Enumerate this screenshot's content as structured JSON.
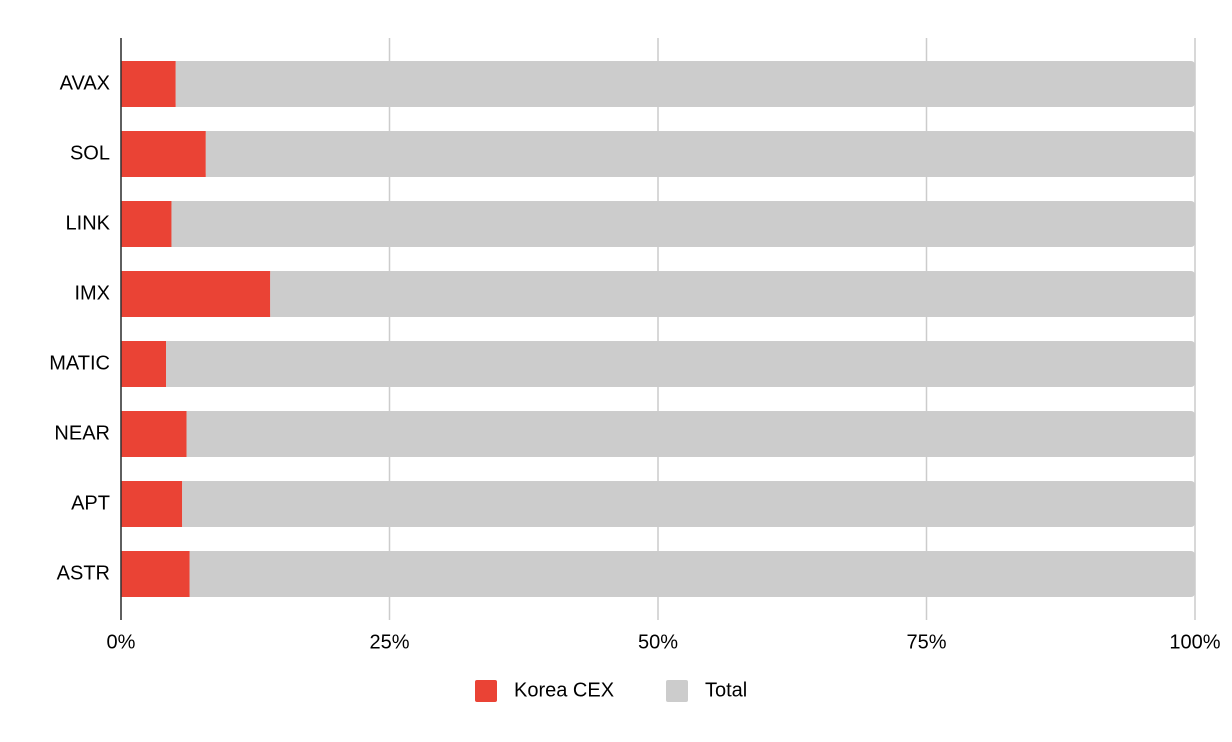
{
  "chart_data": {
    "type": "stacked-bar-horizontal",
    "categories": [
      "AVAX",
      "SOL",
      "LINK",
      "IMX",
      "MATIC",
      "NEAR",
      "APT",
      "ASTR"
    ],
    "series": [
      {
        "name": "Korea CEX",
        "color": "#ea4335",
        "values": [
          5.1,
          7.9,
          4.7,
          13.9,
          4.2,
          6.1,
          5.7,
          6.4
        ]
      },
      {
        "name": "Total",
        "color": "#cccccc",
        "values": [
          94.9,
          92.1,
          95.3,
          86.1,
          95.8,
          93.9,
          94.3,
          93.6
        ]
      }
    ],
    "xlim": [
      0,
      100
    ],
    "xticks": [
      {
        "value": 0,
        "label": "0%"
      },
      {
        "value": 25,
        "label": "25%"
      },
      {
        "value": 50,
        "label": "50%"
      },
      {
        "value": 75,
        "label": "75%"
      },
      {
        "value": 100,
        "label": "100%"
      }
    ],
    "grid": true,
    "legend": "bottom"
  }
}
